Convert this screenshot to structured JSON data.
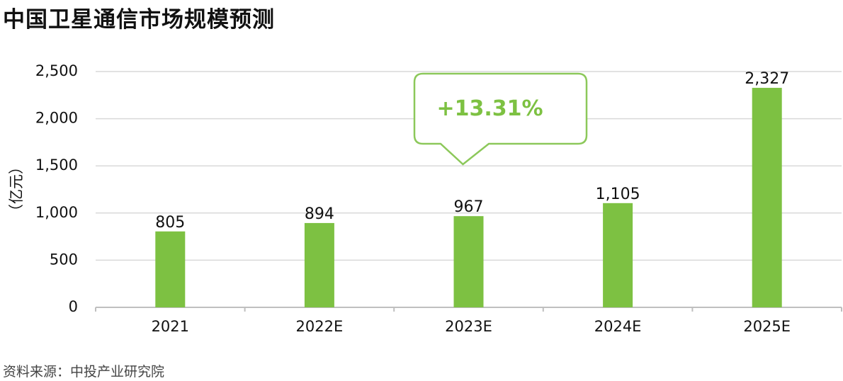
{
  "title": "中国卫星通信市场规模预测",
  "source": "资料来源：中投产业研究院",
  "colors": {
    "bar": "#7dc142",
    "callout": "#8cc85a",
    "grid": "#d9d9d9",
    "axis": "#bfbfbf"
  },
  "chart_data": {
    "type": "bar",
    "title": "中国卫星通信市场规模预测",
    "ylabel": "（亿元）",
    "xlabel": "",
    "categories": [
      "2021",
      "2022E",
      "2023E",
      "2024E",
      "2025E"
    ],
    "values": [
      805,
      894,
      967,
      1105,
      2327
    ],
    "value_labels": [
      "805",
      "894",
      "967",
      "1,105",
      "2,327"
    ],
    "yticks": [
      0,
      500,
      1000,
      1500,
      2000,
      2500
    ],
    "ytick_labels": [
      "0",
      "500",
      "1,000",
      "1,500",
      "2,000",
      "2,500"
    ],
    "ylim": [
      0,
      2500
    ],
    "grid": true,
    "annotation": {
      "text": "+13.31%",
      "category": "2023E"
    }
  }
}
